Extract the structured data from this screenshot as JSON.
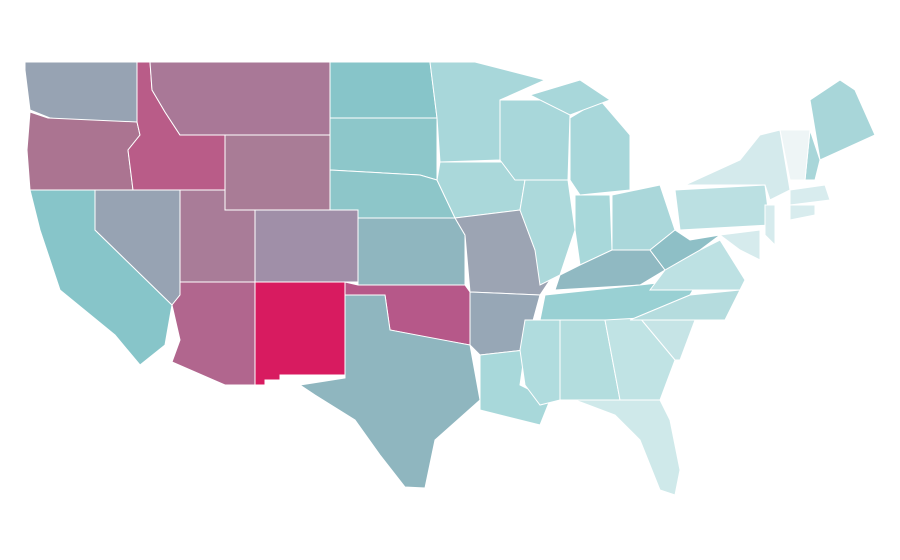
{
  "map": {
    "background": "#ffffff",
    "border_color": "#ffffff",
    "fills": [
      "#97a3b3",
      "#ab7491",
      "#b95c88",
      "#a97897",
      "#a97c96",
      "#87c5c9",
      "#97a3b3",
      "#a97c98",
      "#a08fa8",
      "#b1668e",
      "#d81b60",
      "#87c5c9",
      "#8dc7ca",
      "#8dc6c9",
      "#8fb6bf",
      "#b65889",
      "#8fb6bf",
      "#a8d7da",
      "#aad8da",
      "#9ca4b3",
      "#97a7b6",
      "#a8d8da",
      "#a8d7da",
      "#acd9db",
      "#a8d8da",
      "#a8d7da",
      "#a8d7da",
      "#aad7da",
      "#90b9c2",
      "#99d0d3",
      "#b0dcde",
      "#b3ddde",
      "#c0e3e4",
      "#cfe9ea",
      "#c6e4e6",
      "#b5dcde",
      "#bde1e3",
      "#8ebfc6",
      "#bbe0e2",
      "#d4eaec",
      "#a8d6d9",
      "#a8d6d9",
      "#eef5f6",
      "#d8ecee",
      "#d8ecee",
      "#d6ebed",
      "#d6ebed"
    ]
  }
}
